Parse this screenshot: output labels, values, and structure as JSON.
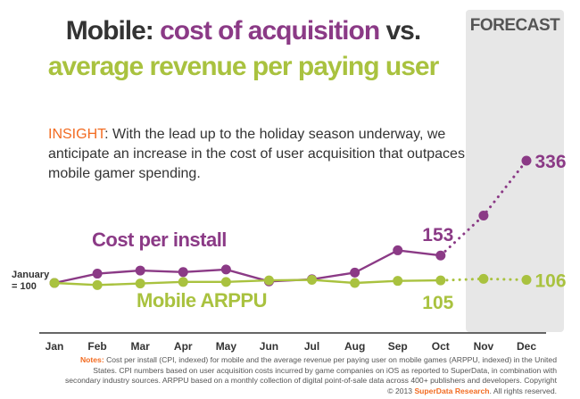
{
  "forecast_label": "FORECAST",
  "title": {
    "prefix": "Mobile: ",
    "highlight1": "cost of acquisition",
    "connector": " vs.",
    "line2": "average revenue per paying user"
  },
  "insight": {
    "label": "INSIGHT",
    "text": ": With the lead up to the holiday season underway, we anticipate an increase in the cost of user acquisition that outpaces mobile gamer spending."
  },
  "notes": {
    "label": "Notes:",
    "text": " Cost per install (CPI, indexed) for mobile and the average revenue per paying user on mobile games (ARPPU, indexed) in the United States. CPI numbers based on user acquisition costs incurred by game companies on iOS as reported to SuperData, in combination with secondary industry sources. ARPPU based on a monthly collection of digital point-of-sale data across 400+ publishers and developers. Copyright © 2013 ",
    "brand": "SuperData Research",
    "suffix": ". All rights reserved."
  },
  "colors": {
    "cpi": "#8b3a86",
    "arppu": "#a9c23f",
    "title_dark": "#333333",
    "accent": "#f26b21",
    "axis": "#333333"
  },
  "chart_data": {
    "type": "line",
    "title": "Mobile: cost of acquisition vs. average revenue per paying user",
    "categories": [
      "Jan",
      "Feb",
      "Mar",
      "Apr",
      "May",
      "Jun",
      "Jul",
      "Aug",
      "Sep",
      "Oct",
      "Nov",
      "Dec"
    ],
    "baseline_label": "January\n= 100",
    "forecast_start_index": 10,
    "ylim": [
      60,
      360
    ],
    "series": [
      {
        "name": "Cost per install",
        "values": [
          100,
          118,
          124,
          121,
          126,
          103,
          107,
          120,
          163,
          153,
          230,
          336
        ],
        "end_label": "336",
        "last_actual_label": "153"
      },
      {
        "name": "Mobile ARPPU",
        "values": [
          100,
          96,
          99,
          102,
          102,
          105,
          106,
          100,
          104,
          105,
          108,
          106
        ],
        "end_label": "106",
        "last_actual_label": "105"
      }
    ]
  }
}
